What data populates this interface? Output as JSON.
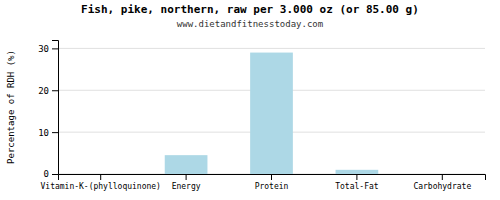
{
  "chart_data": {
    "type": "bar",
    "title": "Fish, pike, northern, raw per 3.000 oz (or 85.00 g)",
    "subtitle": "www.dietandfitnesstoday.com",
    "categories": [
      "Vitamin-K-(phylloquinone)",
      "Energy",
      "Protein",
      "Total-Fat",
      "Carbohydrate"
    ],
    "values": [
      0,
      4.5,
      29.0,
      1.0,
      0
    ],
    "color": "#add8e6",
    "ylabel": "Percentage of RDH (%)",
    "ylim": [
      0,
      32
    ],
    "yticks": [
      0,
      10,
      20,
      30
    ],
    "grid": true
  }
}
